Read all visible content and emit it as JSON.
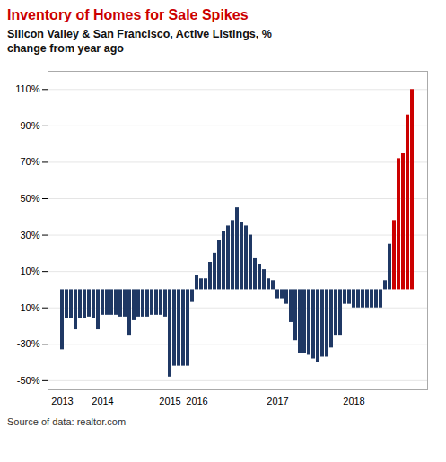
{
  "chart_data": {
    "type": "bar",
    "title": "Inventory of Homes for Sale Spikes",
    "subtitle": "Silicon Valley & San Francisco, Active Listings, %\nchange from year ago",
    "caption": "Source of data: realtor.com",
    "categories": [
      "2013",
      null,
      null,
      null,
      null,
      null,
      null,
      null,
      null,
      "2014",
      null,
      null,
      null,
      null,
      null,
      null,
      null,
      null,
      null,
      null,
      null,
      null,
      null,
      null,
      "2015",
      null,
      null,
      null,
      null,
      null,
      "2016",
      null,
      null,
      null,
      null,
      null,
      null,
      null,
      null,
      null,
      null,
      null,
      null,
      null,
      null,
      null,
      null,
      null,
      "2017",
      null,
      null,
      null,
      null,
      null,
      null,
      null,
      null,
      null,
      null,
      null,
      null,
      null,
      null,
      null,
      null,
      "2018",
      null,
      null,
      null,
      null,
      null,
      null,
      null,
      null,
      null,
      null,
      null,
      null,
      null
    ],
    "values": [
      -33,
      -16,
      -16,
      -22,
      -16,
      -16,
      -15,
      -16,
      -22,
      -14,
      -14,
      -14,
      -14,
      -15,
      -15,
      -25,
      -17,
      -15,
      -15,
      -15,
      -14,
      -14,
      -14,
      -15,
      -48,
      -42,
      -42,
      -42,
      -42,
      -7,
      8,
      6,
      6,
      15,
      20,
      27,
      32,
      35,
      38,
      45,
      37,
      35,
      30,
      17,
      14,
      11,
      6,
      5,
      -5,
      -5,
      -8,
      -18,
      -28,
      -35,
      -35,
      -36,
      -38,
      -40,
      -37,
      -37,
      -32,
      -25,
      -25,
      -8,
      -8,
      -10,
      -10,
      -10,
      -10,
      -10,
      -10,
      -10,
      5,
      25,
      38,
      72,
      75,
      96,
      110
    ],
    "colors": [
      "#1f3864",
      "#1f3864",
      "#1f3864",
      "#1f3864",
      "#1f3864",
      "#1f3864",
      "#1f3864",
      "#1f3864",
      "#1f3864",
      "#1f3864",
      "#1f3864",
      "#1f3864",
      "#1f3864",
      "#1f3864",
      "#1f3864",
      "#1f3864",
      "#1f3864",
      "#1f3864",
      "#1f3864",
      "#1f3864",
      "#1f3864",
      "#1f3864",
      "#1f3864",
      "#1f3864",
      "#1f3864",
      "#1f3864",
      "#1f3864",
      "#1f3864",
      "#1f3864",
      "#1f3864",
      "#1f3864",
      "#1f3864",
      "#1f3864",
      "#1f3864",
      "#1f3864",
      "#1f3864",
      "#1f3864",
      "#1f3864",
      "#1f3864",
      "#1f3864",
      "#1f3864",
      "#1f3864",
      "#1f3864",
      "#1f3864",
      "#1f3864",
      "#1f3864",
      "#1f3864",
      "#1f3864",
      "#1f3864",
      "#1f3864",
      "#1f3864",
      "#1f3864",
      "#1f3864",
      "#1f3864",
      "#1f3864",
      "#1f3864",
      "#1f3864",
      "#1f3864",
      "#1f3864",
      "#1f3864",
      "#1f3864",
      "#1f3864",
      "#1f3864",
      "#1f3864",
      "#1f3864",
      "#1f3864",
      "#1f3864",
      "#1f3864",
      "#1f3864",
      "#1f3864",
      "#1f3864",
      "#1f3864",
      "#1f3864",
      "#1f3864",
      "#cc0000",
      "#cc0000",
      "#cc0000",
      "#cc0000",
      "#cc0000"
    ],
    "ylim": [
      -55,
      120
    ],
    "yticks": [
      {
        "value": -50,
        "label": "-50%"
      },
      {
        "value": -30,
        "label": "-30%"
      },
      {
        "value": -10,
        "label": "-10%"
      },
      {
        "value": 10,
        "label": "10%"
      },
      {
        "value": 30,
        "label": "30%"
      },
      {
        "value": 50,
        "label": "50%"
      },
      {
        "value": 70,
        "label": "70%"
      },
      {
        "value": 90,
        "label": "90%"
      },
      {
        "value": 110,
        "label": "110%"
      }
    ],
    "grid": true
  }
}
